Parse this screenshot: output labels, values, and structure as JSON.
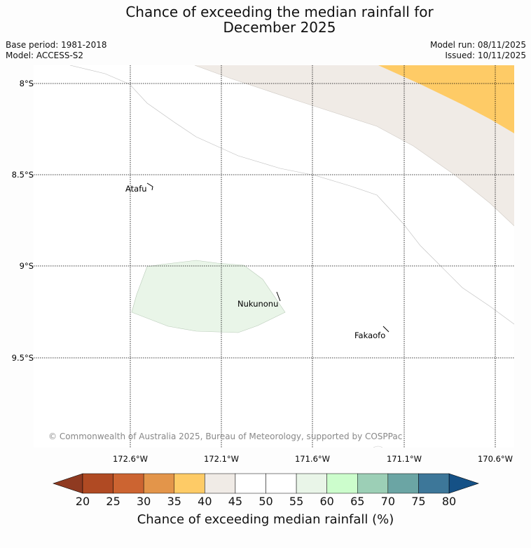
{
  "title": {
    "line1": "Chance of exceeding the median rainfall for",
    "line2": "December 2025"
  },
  "meta": {
    "base_period": "Base period: 1981-2018",
    "model": "Model: ACCESS-S2",
    "model_run": "Model run: 08/11/2025",
    "issued": "Issued: 10/11/2025"
  },
  "map": {
    "lat_labels": [
      "8°S",
      "8.5°S",
      "9°S",
      "9.5°S"
    ],
    "lon_labels": [
      "172.6°W",
      "172.1°W",
      "171.6°W",
      "171.1°W",
      "170.6°W"
    ],
    "places": [
      "Atafu",
      "Nukunonu",
      "Fakaofo"
    ],
    "credit": "© Commonwealth of Australia 2025, Bureau of Meteorology, supported by COSPPac"
  },
  "legend": {
    "title": "Chance of exceeding median rainfall (%)",
    "ticks": [
      "20",
      "25",
      "30",
      "35",
      "40",
      "45",
      "50",
      "55",
      "60",
      "65",
      "70",
      "75",
      "80"
    ],
    "colors": [
      "#b04a23",
      "#cc6431",
      "#e3954a",
      "#fecb66",
      "#f0ebe6",
      "#ffffff",
      "#ffffff",
      "#e9f5e8",
      "#ccfdcc",
      "#9ccfb6",
      "#6ba5a4",
      "#3d7799"
    ],
    "under_color": "#8f3a21",
    "over_color": "#155186"
  },
  "colors": {
    "beige_zone": "#f0ebe6",
    "orange_zone": "#fecb66",
    "green_zone": "#e9f5e8"
  }
}
